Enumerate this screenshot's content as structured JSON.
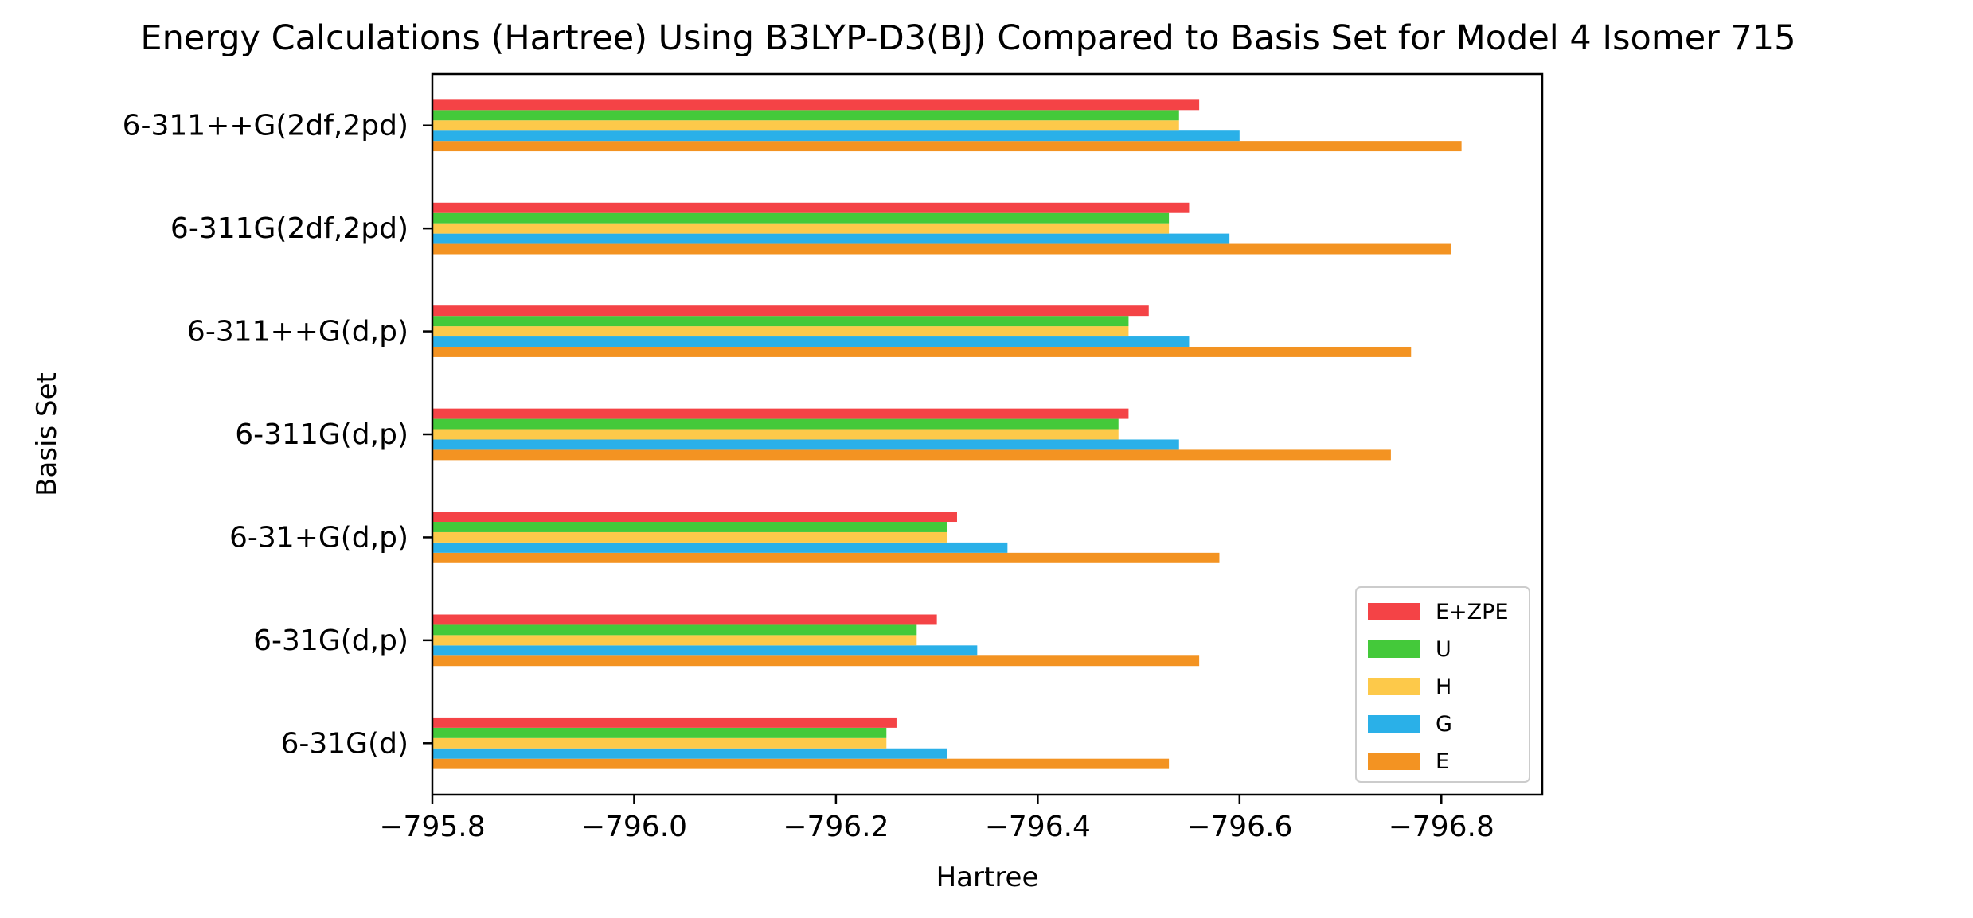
{
  "chart_data": {
    "type": "bar",
    "orientation": "horizontal",
    "title": "Energy Calculations (Hartree) Using B3LYP-D3(BJ) Compared to Basis Set for Model 4 Isomer 715",
    "xlabel": "Hartree",
    "ylabel": "Basis Set",
    "xlim": [
      -795.8,
      -796.9
    ],
    "xticks": [
      -795.8,
      -796.0,
      -796.2,
      -796.4,
      -796.6,
      -796.8
    ],
    "xtick_labels": [
      "−795.8",
      "−796.0",
      "−796.2",
      "−796.4",
      "−796.6",
      "−796.8"
    ],
    "categories": [
      "6-31G(d)",
      "6-31G(d,p)",
      "6-31+G(d,p)",
      "6-311G(d,p)",
      "6-311++G(d,p)",
      "6-311G(2df,2pd)",
      "6-311++G(2df,2pd)"
    ],
    "series": [
      {
        "name": "E",
        "color": "#F39322",
        "values": [
          -796.53,
          -796.56,
          -796.58,
          -796.75,
          -796.77,
          -796.81,
          -796.82
        ]
      },
      {
        "name": "G",
        "color": "#2AB0E8",
        "values": [
          -796.31,
          -796.34,
          -796.37,
          -796.54,
          -796.55,
          -796.59,
          -796.6
        ]
      },
      {
        "name": "H",
        "color": "#FDC94A",
        "values": [
          -796.25,
          -796.28,
          -796.31,
          -796.48,
          -796.49,
          -796.53,
          -796.54
        ]
      },
      {
        "name": "U",
        "color": "#44C93A",
        "values": [
          -796.25,
          -796.28,
          -796.31,
          -796.48,
          -796.49,
          -796.53,
          -796.54
        ]
      },
      {
        "name": "E+ZPE",
        "color": "#F44346",
        "values": [
          -796.26,
          -796.3,
          -796.32,
          -796.49,
          -796.51,
          -796.55,
          -796.56
        ]
      }
    ],
    "legend_order": [
      "E+ZPE",
      "U",
      "H",
      "G",
      "E"
    ],
    "legend_position": "lower-right",
    "grid": false
  }
}
